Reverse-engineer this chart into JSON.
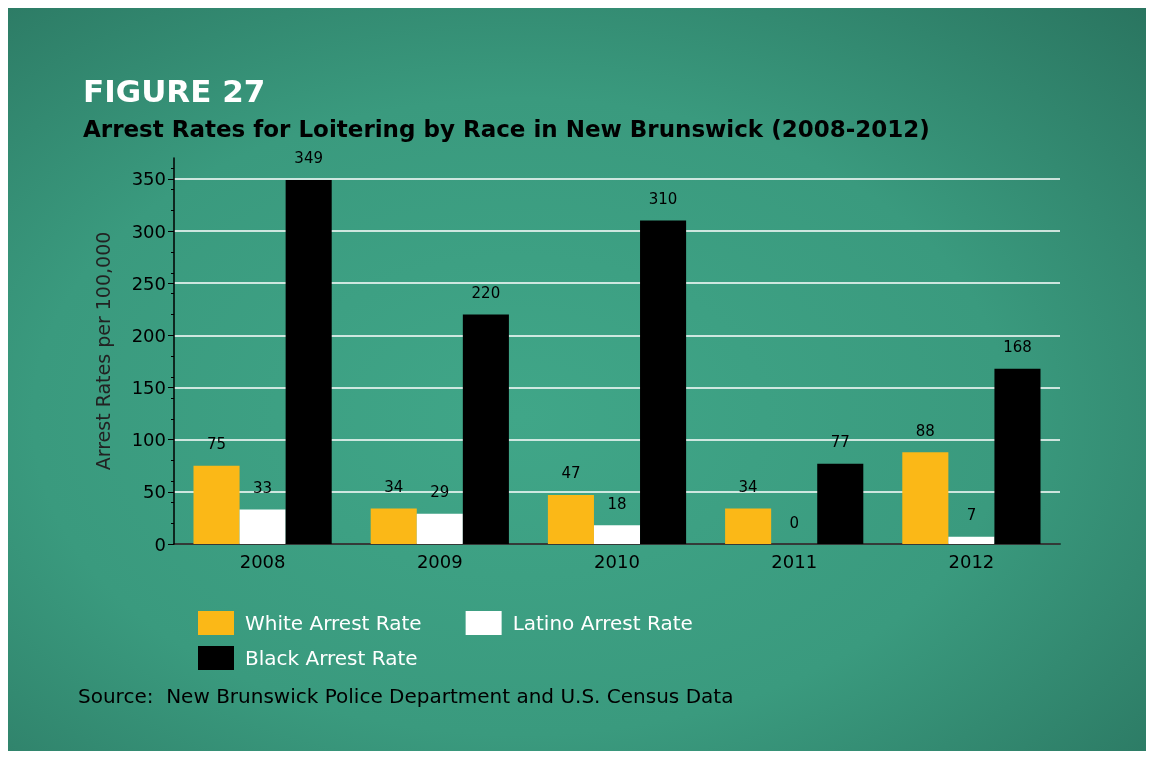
{
  "chart_data": {
    "type": "bar",
    "title": "FIGURE 27",
    "subtitle": "Arrest Rates for Loitering by Race in New Brunswick (2008-2012)",
    "ylabel": "Arrest Rates per 100,000",
    "categories": [
      "2008",
      "2009",
      "2010",
      "2011",
      "2012"
    ],
    "series": [
      {
        "name": "White Arrest Rate",
        "color": "#fbb817",
        "values": [
          75,
          34,
          47,
          34,
          88
        ]
      },
      {
        "name": "Latino Arrest Rate",
        "color": "#ffffff",
        "values": [
          33,
          29,
          18,
          0,
          7
        ]
      },
      {
        "name": "Black Arrest Rate",
        "color": "#000000",
        "values": [
          349,
          220,
          310,
          77,
          168
        ]
      }
    ],
    "ylim": [
      0,
      370
    ],
    "yticks": [
      0,
      50,
      100,
      150,
      200,
      250,
      300,
      350
    ],
    "grid": "y",
    "legend": "bottom",
    "data_labels": true,
    "annotations": [
      "Source:  New Brunswick Police Department and U.S. Census Data"
    ]
  }
}
